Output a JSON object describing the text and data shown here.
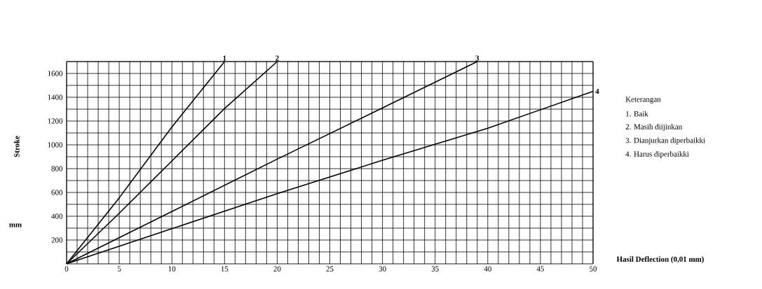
{
  "chart_data": {
    "type": "line",
    "xlabel": "Hasil Deflection (0,01 mm)",
    "ylabel": "Stroke",
    "annotations": [
      "mm",
      "Keterangan",
      "1. Baik",
      "2. Masih diijinkan",
      "3. Dianjurkan diperbaikki",
      "4. Harus diperbaikki"
    ],
    "series": [
      {
        "name": "1",
        "color": "#000000",
        "x": [
          0,
          5,
          10,
          15
        ],
        "values": [
          0,
          555,
          1150,
          1700
        ]
      },
      {
        "name": "2",
        "color": "#000000",
        "x": [
          0,
          5,
          10,
          15,
          20
        ],
        "values": [
          0,
          425,
          865,
          1305,
          1700
        ]
      },
      {
        "name": "3",
        "color": "#000000",
        "x": [
          0,
          10,
          20,
          30,
          39
        ],
        "values": [
          0,
          440,
          880,
          1310,
          1700
        ]
      },
      {
        "name": "4",
        "color": "#000000",
        "x": [
          0,
          10,
          20,
          30,
          40,
          50
        ],
        "values": [
          0,
          295,
          590,
          870,
          1140,
          1450
        ]
      }
    ],
    "xlim": [
      0,
      50
    ],
    "ylim": [
      0,
      1700
    ],
    "xticks": [
      0,
      {
        "value": 1,
        "label": null
      },
      {
        "value": 2,
        "label": null
      },
      {
        "value": 3,
        "label": null
      },
      {
        "value": 4,
        "label": null
      },
      5,
      {
        "value": 6,
        "label": null
      },
      {
        "value": 7,
        "label": null
      },
      {
        "value": 8,
        "label": null
      },
      {
        "value": 9,
        "label": null
      },
      10,
      {
        "value": 11,
        "label": null
      },
      {
        "value": 12,
        "label": null
      },
      {
        "value": 13,
        "label": null
      },
      {
        "value": 14,
        "label": null
      },
      15,
      {
        "value": 16,
        "label": null
      },
      {
        "value": 17,
        "label": null
      },
      {
        "value": 18,
        "label": null
      },
      {
        "value": 19,
        "label": null
      },
      20,
      {
        "value": 21,
        "label": null
      },
      {
        "value": 22,
        "label": null
      },
      {
        "value": 23,
        "label": null
      },
      {
        "value": 24,
        "label": null
      },
      25,
      {
        "value": 26,
        "label": null
      },
      {
        "value": 27,
        "label": null
      },
      {
        "value": 28,
        "label": null
      },
      {
        "value": 29,
        "label": null
      },
      30,
      {
        "value": 31,
        "label": null
      },
      {
        "value": 32,
        "label": null
      },
      {
        "value": 33,
        "label": null
      },
      {
        "value": 34,
        "label": null
      },
      35,
      {
        "value": 36,
        "label": null
      },
      {
        "value": 37,
        "label": null
      },
      {
        "value": 38,
        "label": null
      },
      {
        "value": 39,
        "label": null
      },
      40,
      {
        "value": 41,
        "label": null
      },
      {
        "value": 42,
        "label": null
      },
      {
        "value": 43,
        "label": null
      },
      {
        "value": 44,
        "label": null
      },
      45,
      {
        "value": 46,
        "label": null
      },
      {
        "value": 47,
        "label": null
      },
      {
        "value": 48,
        "label": null
      },
      {
        "value": 49,
        "label": null
      },
      50
    ],
    "yticks": [
      {
        "value": 100,
        "label": null
      },
      200,
      {
        "value": 300,
        "label": null
      },
      400,
      {
        "value": 500,
        "label": null
      },
      600,
      {
        "value": 700,
        "label": null
      },
      800,
      {
        "value": 900,
        "label": null
      },
      1000,
      {
        "value": 1100,
        "label": null
      },
      1200,
      {
        "value": 1300,
        "label": null
      },
      1400,
      {
        "value": 1500,
        "label": null
      },
      1600,
      {
        "value": 1700,
        "label": null
      }
    ],
    "grid": true,
    "marker": "none",
    "line_style": "solid"
  }
}
